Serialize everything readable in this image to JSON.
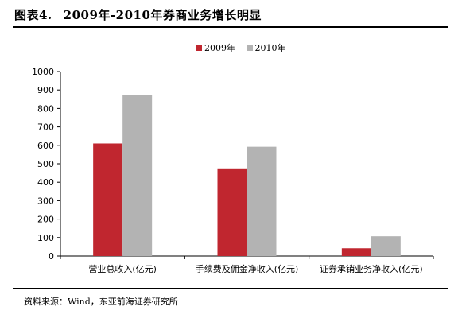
{
  "figure": {
    "label": "图表4.",
    "title": "2009年-2010年券商业务增长明显"
  },
  "source_note": "资料来源：Wind，东亚前海证券研究所",
  "chart_data": {
    "type": "bar",
    "title": "2009年-2010年券商业务增长明显",
    "categories": [
      "营业总收入(亿元)",
      "手续费及佣金净收入(亿元)",
      "证券承销业务净收入(亿元)"
    ],
    "series": [
      {
        "name": "2009年",
        "values": [
          610,
          475,
          42
        ],
        "color": "#c0262f"
      },
      {
        "name": "2010年",
        "values": [
          872,
          592,
          107
        ],
        "color": "#b3b3b3"
      }
    ],
    "xlabel": "",
    "ylabel": "",
    "ylim": [
      0,
      1000
    ],
    "yticks": [
      0,
      100,
      200,
      300,
      400,
      500,
      600,
      700,
      800,
      900,
      1000
    ],
    "grid": false,
    "legend": "top-center"
  }
}
